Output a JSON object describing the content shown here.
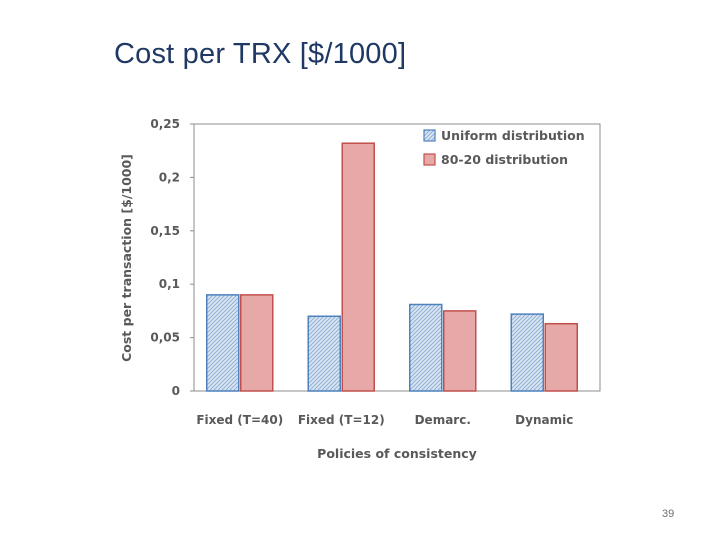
{
  "slide": {
    "title": "Cost per TRX [$/1000]",
    "page_number": "39"
  },
  "chart_data": {
    "type": "bar",
    "title": "",
    "xlabel": "Policies of consistency",
    "ylabel": "Cost per transaction [$/1000]",
    "categories": [
      "Fixed (T=40)",
      "Fixed (T=12)",
      "Demarc.",
      "Dynamic"
    ],
    "series": [
      {
        "name": "Uniform distribution",
        "values": [
          0.09,
          0.07,
          0.081,
          0.072
        ],
        "color": "#4f81bd",
        "fill": "#dbe6f1",
        "pattern": "hatched"
      },
      {
        "name": "80-20 distribution",
        "values": [
          0.09,
          0.232,
          0.075,
          0.063
        ],
        "color": "#c0504d",
        "fill": "#e6a9a7",
        "pattern": "solid"
      }
    ],
    "ylim": [
      0,
      0.25
    ],
    "yticks": [
      0,
      0.05,
      0.1,
      0.15,
      0.2,
      0.25
    ],
    "ytick_labels": [
      "0",
      "0,05",
      "0,1",
      "0,15",
      "0,2",
      "0,25"
    ],
    "grid": false,
    "legend_position": "top-right"
  }
}
